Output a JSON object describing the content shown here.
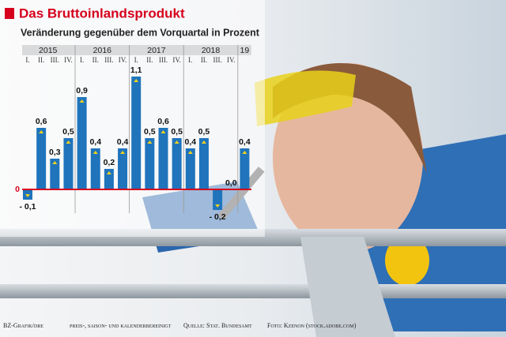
{
  "chart_data": {
    "type": "bar",
    "title": "Das Bruttoinlandsprodukt",
    "subtitle": "Veränderung gegenüber dem Vorquartal in Prozent",
    "years": [
      "2015",
      "2016",
      "2017",
      "2018",
      "19"
    ],
    "categories": [
      "I.",
      "II.",
      "III.",
      "IV.",
      "I.",
      "II.",
      "III.",
      "IV.",
      "I.",
      "II.",
      "III.",
      "IV.",
      "I.",
      "II.",
      "III.",
      "IV.",
      null
    ],
    "values": [
      -0.1,
      0.6,
      0.3,
      0.5,
      0.9,
      0.4,
      0.2,
      0.4,
      1.1,
      0.5,
      0.6,
      0.5,
      0.4,
      0.5,
      -0.2,
      0.0,
      0.4
    ],
    "value_labels": [
      "- 0,1",
      "0,6",
      "0,3",
      "0,5",
      "0,9",
      "0,4",
      "0,2",
      "0,4",
      "1,1",
      "0,5",
      "0,6",
      "0,5",
      "0,4",
      "0,5",
      "- 0,2",
      "0,0",
      "0,4"
    ],
    "color": "#1f74bc",
    "zero_line_color": "#d6001c",
    "ylim": [
      -0.3,
      1.2
    ],
    "yticks": [
      0
    ],
    "footer": [
      "BZ-Grafik/dre",
      "preis-, saison- und kalenderbereinigt",
      "Quelle: Stat. Bundesamt",
      "Foto: Kzenon (stock.adobe.com)"
    ]
  }
}
